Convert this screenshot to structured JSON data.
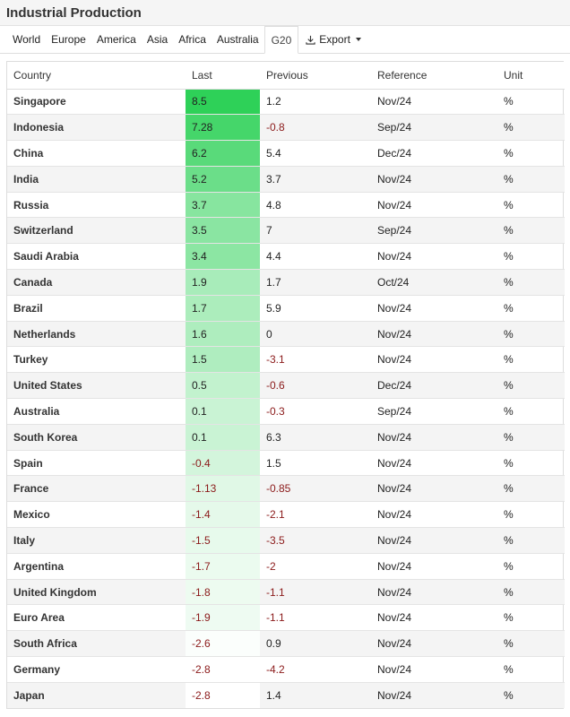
{
  "page": {
    "title": "Industrial Production"
  },
  "tabs": [
    {
      "label": "World"
    },
    {
      "label": "Europe"
    },
    {
      "label": "America"
    },
    {
      "label": "Asia"
    },
    {
      "label": "Africa"
    },
    {
      "label": "Australia"
    },
    {
      "label": "G20",
      "active": true
    }
  ],
  "export": {
    "label": "Export",
    "icon": "download-icon"
  },
  "table": {
    "headers": [
      "Country",
      "Last",
      "Previous",
      "Reference",
      "Unit"
    ],
    "rows": [
      {
        "country": "Singapore",
        "last": "8.5",
        "previous": "1.2",
        "reference": "Nov/24",
        "unit": "%"
      },
      {
        "country": "Indonesia",
        "last": "7.28",
        "previous": "-0.8",
        "reference": "Sep/24",
        "unit": "%"
      },
      {
        "country": "China",
        "last": "6.2",
        "previous": "5.4",
        "reference": "Dec/24",
        "unit": "%"
      },
      {
        "country": "India",
        "last": "5.2",
        "previous": "3.7",
        "reference": "Nov/24",
        "unit": "%"
      },
      {
        "country": "Russia",
        "last": "3.7",
        "previous": "4.8",
        "reference": "Nov/24",
        "unit": "%"
      },
      {
        "country": "Switzerland",
        "last": "3.5",
        "previous": "7",
        "reference": "Sep/24",
        "unit": "%"
      },
      {
        "country": "Saudi Arabia",
        "last": "3.4",
        "previous": "4.4",
        "reference": "Nov/24",
        "unit": "%"
      },
      {
        "country": "Canada",
        "last": "1.9",
        "previous": "1.7",
        "reference": "Oct/24",
        "unit": "%"
      },
      {
        "country": "Brazil",
        "last": "1.7",
        "previous": "5.9",
        "reference": "Nov/24",
        "unit": "%"
      },
      {
        "country": "Netherlands",
        "last": "1.6",
        "previous": "0",
        "reference": "Nov/24",
        "unit": "%"
      },
      {
        "country": "Turkey",
        "last": "1.5",
        "previous": "-3.1",
        "reference": "Nov/24",
        "unit": "%"
      },
      {
        "country": "United States",
        "last": "0.5",
        "previous": "-0.6",
        "reference": "Dec/24",
        "unit": "%"
      },
      {
        "country": "Australia",
        "last": "0.1",
        "previous": "-0.3",
        "reference": "Sep/24",
        "unit": "%"
      },
      {
        "country": "South Korea",
        "last": "0.1",
        "previous": "6.3",
        "reference": "Nov/24",
        "unit": "%"
      },
      {
        "country": "Spain",
        "last": "-0.4",
        "previous": "1.5",
        "reference": "Nov/24",
        "unit": "%"
      },
      {
        "country": "France",
        "last": "-1.13",
        "previous": "-0.85",
        "reference": "Nov/24",
        "unit": "%"
      },
      {
        "country": "Mexico",
        "last": "-1.4",
        "previous": "-2.1",
        "reference": "Nov/24",
        "unit": "%"
      },
      {
        "country": "Italy",
        "last": "-1.5",
        "previous": "-3.5",
        "reference": "Nov/24",
        "unit": "%"
      },
      {
        "country": "Argentina",
        "last": "-1.7",
        "previous": "-2",
        "reference": "Nov/24",
        "unit": "%"
      },
      {
        "country": "United Kingdom",
        "last": "-1.8",
        "previous": "-1.1",
        "reference": "Nov/24",
        "unit": "%"
      },
      {
        "country": "Euro Area",
        "last": "-1.9",
        "previous": "-1.1",
        "reference": "Nov/24",
        "unit": "%"
      },
      {
        "country": "South Africa",
        "last": "-2.6",
        "previous": "0.9",
        "reference": "Nov/24",
        "unit": "%"
      },
      {
        "country": "Germany",
        "last": "-2.8",
        "previous": "-4.2",
        "reference": "Nov/24",
        "unit": "%"
      },
      {
        "country": "Japan",
        "last": "-2.8",
        "previous": "1.4",
        "reference": "Nov/24",
        "unit": "%"
      }
    ]
  },
  "colors": {
    "heat_high": "#2ed158",
    "heat_low": "#ffffff",
    "negative_text": "#8b1a1a"
  }
}
